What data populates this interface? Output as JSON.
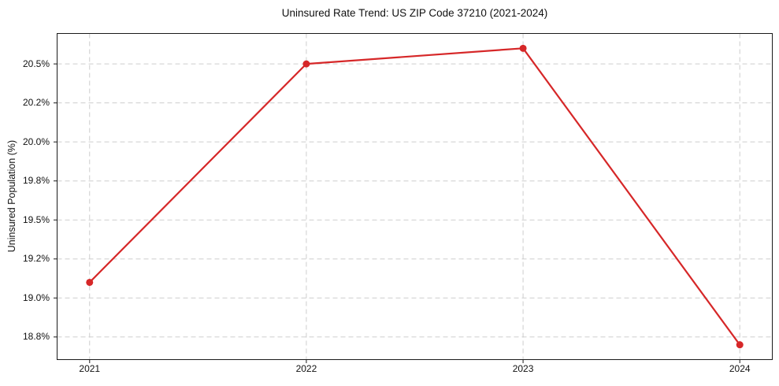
{
  "chart_data": {
    "type": "line",
    "title": "Uninsured Rate Trend: US ZIP Code 37210 (2021-2024)",
    "xlabel": "",
    "ylabel": "Uninsured Population (%)",
    "x": [
      2021,
      2022,
      2023,
      2024
    ],
    "x_tick_labels": [
      "2021",
      "2022",
      "2023",
      "2024"
    ],
    "series": [
      {
        "name": "Uninsured rate",
        "values": [
          19.1,
          20.5,
          20.6,
          18.7
        ],
        "color": "#d62728",
        "marker": "circle",
        "line_width": 2.2,
        "marker_radius": 4.5
      }
    ],
    "y_ticks": [
      {
        "value": 18.75,
        "label": "18.8%"
      },
      {
        "value": 19.0,
        "label": "19.0%"
      },
      {
        "value": 19.25,
        "label": "19.2%"
      },
      {
        "value": 19.5,
        "label": "19.5%"
      },
      {
        "value": 19.75,
        "label": "19.8%"
      },
      {
        "value": 20.0,
        "label": "20.0%"
      },
      {
        "value": 20.25,
        "label": "20.2%"
      },
      {
        "value": 20.5,
        "label": "20.5%"
      }
    ],
    "ylim": [
      18.605,
      20.695
    ],
    "xlim_index": [
      -0.15,
      3.15
    ],
    "grid": true,
    "grid_color": "#cdcdcd",
    "grid_style": "dashed",
    "spine_color": "#1a1a1a",
    "background": "#ffffff",
    "legend": "none"
  }
}
